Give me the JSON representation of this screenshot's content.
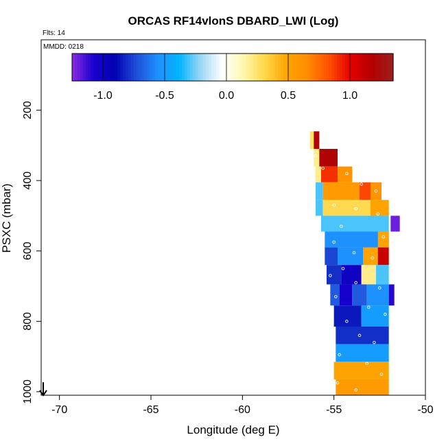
{
  "chart_data": {
    "type": "heatmap",
    "title": "ORCAS RF14vlonS DBARD_LWI (Log)",
    "annotations": {
      "flights": "Flts: 14",
      "date": "MMDD: 0218"
    },
    "xlabel": "Longitude (deg E)",
    "ylabel": "PSXC (mbar)",
    "xlim": [
      -71,
      -50
    ],
    "ylim": [
      1010,
      0
    ],
    "y_reversed": true,
    "x_ticks": [
      -70,
      -65,
      -60,
      -55,
      -50
    ],
    "y_ticks": [
      200,
      400,
      600,
      800,
      1000
    ],
    "colorbar": {
      "range": [
        -1.25,
        1.35
      ],
      "ticks": [
        -1.0,
        -0.5,
        0.0,
        0.5,
        1.0
      ],
      "tick_labels": [
        "-1.0",
        "-0.5",
        "0.0",
        "0.5",
        "1.0"
      ],
      "colors": [
        "#8a2be2",
        "#1a00d0",
        "#0000b0",
        "#1f4fd8",
        "#1e90ff",
        "#00b4ff",
        "#9ad6f5",
        "#ffffff",
        "#fff8b0",
        "#ffd84a",
        "#ffa500",
        "#ff8c00",
        "#ff5000",
        "#e60000",
        "#b30000",
        "#9b2020"
      ]
    },
    "cells": [
      {
        "lon": -56.3,
        "lon2": -56.1,
        "p": 260,
        "p2": 310,
        "v": 0.25
      },
      {
        "lon": -56.1,
        "lon2": -55.8,
        "p": 260,
        "p2": 310,
        "v": 1.2
      },
      {
        "lon": -56.1,
        "lon2": -55.8,
        "p": 310,
        "p2": 360,
        "v": 0.2
      },
      {
        "lon": -55.8,
        "lon2": -54.8,
        "p": 310,
        "p2": 360,
        "v": 1.2
      },
      {
        "lon": -56.0,
        "lon2": -55.7,
        "p": 360,
        "p2": 405,
        "v": 0.2
      },
      {
        "lon": -55.7,
        "lon2": -54.8,
        "p": 360,
        "p2": 405,
        "v": 0.9
      },
      {
        "lon": -54.8,
        "lon2": -54.0,
        "p": 360,
        "p2": 405,
        "v": 0.6
      },
      {
        "lon": -56.0,
        "lon2": -55.6,
        "p": 405,
        "p2": 455,
        "v": -0.3
      },
      {
        "lon": -55.6,
        "lon2": -53.6,
        "p": 405,
        "p2": 455,
        "v": 0.55
      },
      {
        "lon": -53.6,
        "lon2": -53.0,
        "p": 405,
        "p2": 455,
        "v": 0.85
      },
      {
        "lon": -53.0,
        "lon2": -52.4,
        "p": 405,
        "p2": 455,
        "v": 0.6
      },
      {
        "lon": -56.0,
        "lon2": -55.6,
        "p": 455,
        "p2": 500,
        "v": -0.3
      },
      {
        "lon": -55.6,
        "lon2": -53.0,
        "p": 455,
        "p2": 500,
        "v": 0.3
      },
      {
        "lon": -53.0,
        "lon2": -52.0,
        "p": 455,
        "p2": 500,
        "v": 0.5
      },
      {
        "lon": -55.7,
        "lon2": -52.0,
        "p": 500,
        "p2": 545,
        "v": -0.3
      },
      {
        "lon": -51.9,
        "lon2": -51.4,
        "p": 500,
        "p2": 545,
        "v": -1.2
      },
      {
        "lon": -55.5,
        "lon2": -52.0,
        "p": 545,
        "p2": 590,
        "v": -0.55
      },
      {
        "lon": -52.6,
        "lon2": -52.0,
        "p": 545,
        "p2": 590,
        "v": 0.5
      },
      {
        "lon": -55.5,
        "lon2": -54.8,
        "p": 590,
        "p2": 640,
        "v": -0.75
      },
      {
        "lon": -54.8,
        "lon2": -53.4,
        "p": 590,
        "p2": 640,
        "v": -0.55
      },
      {
        "lon": -53.4,
        "lon2": -52.6,
        "p": 590,
        "p2": 640,
        "v": 0.5
      },
      {
        "lon": -52.6,
        "lon2": -52.0,
        "p": 590,
        "p2": 640,
        "v": 1.1
      },
      {
        "lon": -55.4,
        "lon2": -54.6,
        "p": 640,
        "p2": 695,
        "v": -0.8
      },
      {
        "lon": -54.6,
        "lon2": -53.5,
        "p": 640,
        "p2": 695,
        "v": -1.0
      },
      {
        "lon": -53.5,
        "lon2": -52.7,
        "p": 640,
        "p2": 695,
        "v": 0.2
      },
      {
        "lon": -52.7,
        "lon2": -52.0,
        "p": 640,
        "p2": 695,
        "v": -0.3
      },
      {
        "lon": -55.2,
        "lon2": -54.7,
        "p": 695,
        "p2": 755,
        "v": -0.7
      },
      {
        "lon": -54.7,
        "lon2": -54.0,
        "p": 695,
        "p2": 755,
        "v": -1.05
      },
      {
        "lon": -54.0,
        "lon2": -53.2,
        "p": 695,
        "p2": 755,
        "v": -0.7
      },
      {
        "lon": -53.2,
        "lon2": -52.0,
        "p": 695,
        "p2": 755,
        "v": -0.55
      },
      {
        "lon": -52.0,
        "lon2": -51.7,
        "p": 695,
        "p2": 755,
        "v": -1.1
      },
      {
        "lon": -55.0,
        "lon2": -53.5,
        "p": 755,
        "p2": 815,
        "v": -0.85
      },
      {
        "lon": -53.5,
        "lon2": -52.0,
        "p": 755,
        "p2": 815,
        "v": -0.5
      },
      {
        "lon": -54.9,
        "lon2": -52.0,
        "p": 815,
        "p2": 865,
        "v": -0.8
      },
      {
        "lon": -54.9,
        "lon2": -52.0,
        "p": 865,
        "p2": 915,
        "v": -0.5
      },
      {
        "lon": -55.0,
        "lon2": -52.0,
        "p": 915,
        "p2": 965,
        "v": 0.5
      },
      {
        "lon": -54.9,
        "lon2": -52.0,
        "p": 965,
        "p2": 1010,
        "v": 0.55
      }
    ],
    "flight_points": [
      {
        "lon": -56.0,
        "p": 330
      },
      {
        "lon": -55.6,
        "p": 365
      },
      {
        "lon": -54.3,
        "p": 380
      },
      {
        "lon": -53.5,
        "p": 410
      },
      {
        "lon": -52.7,
        "p": 430
      },
      {
        "lon": -55.0,
        "p": 470
      },
      {
        "lon": -53.8,
        "p": 480
      },
      {
        "lon": -52.6,
        "p": 495
      },
      {
        "lon": -54.6,
        "p": 530
      },
      {
        "lon": -52.3,
        "p": 560
      },
      {
        "lon": -55.0,
        "p": 575
      },
      {
        "lon": -53.9,
        "p": 605
      },
      {
        "lon": -52.9,
        "p": 620
      },
      {
        "lon": -54.5,
        "p": 650
      },
      {
        "lon": -55.2,
        "p": 670
      },
      {
        "lon": -53.8,
        "p": 690
      },
      {
        "lon": -52.5,
        "p": 705
      },
      {
        "lon": -54.9,
        "p": 730
      },
      {
        "lon": -53.1,
        "p": 760
      },
      {
        "lon": -52.2,
        "p": 780
      },
      {
        "lon": -54.3,
        "p": 800
      },
      {
        "lon": -53.6,
        "p": 840
      },
      {
        "lon": -52.8,
        "p": 860
      },
      {
        "lon": -54.7,
        "p": 895
      },
      {
        "lon": -53.2,
        "p": 920
      },
      {
        "lon": -52.4,
        "p": 950
      },
      {
        "lon": -54.8,
        "p": 975
      },
      {
        "lon": -53.8,
        "p": 995
      }
    ]
  }
}
